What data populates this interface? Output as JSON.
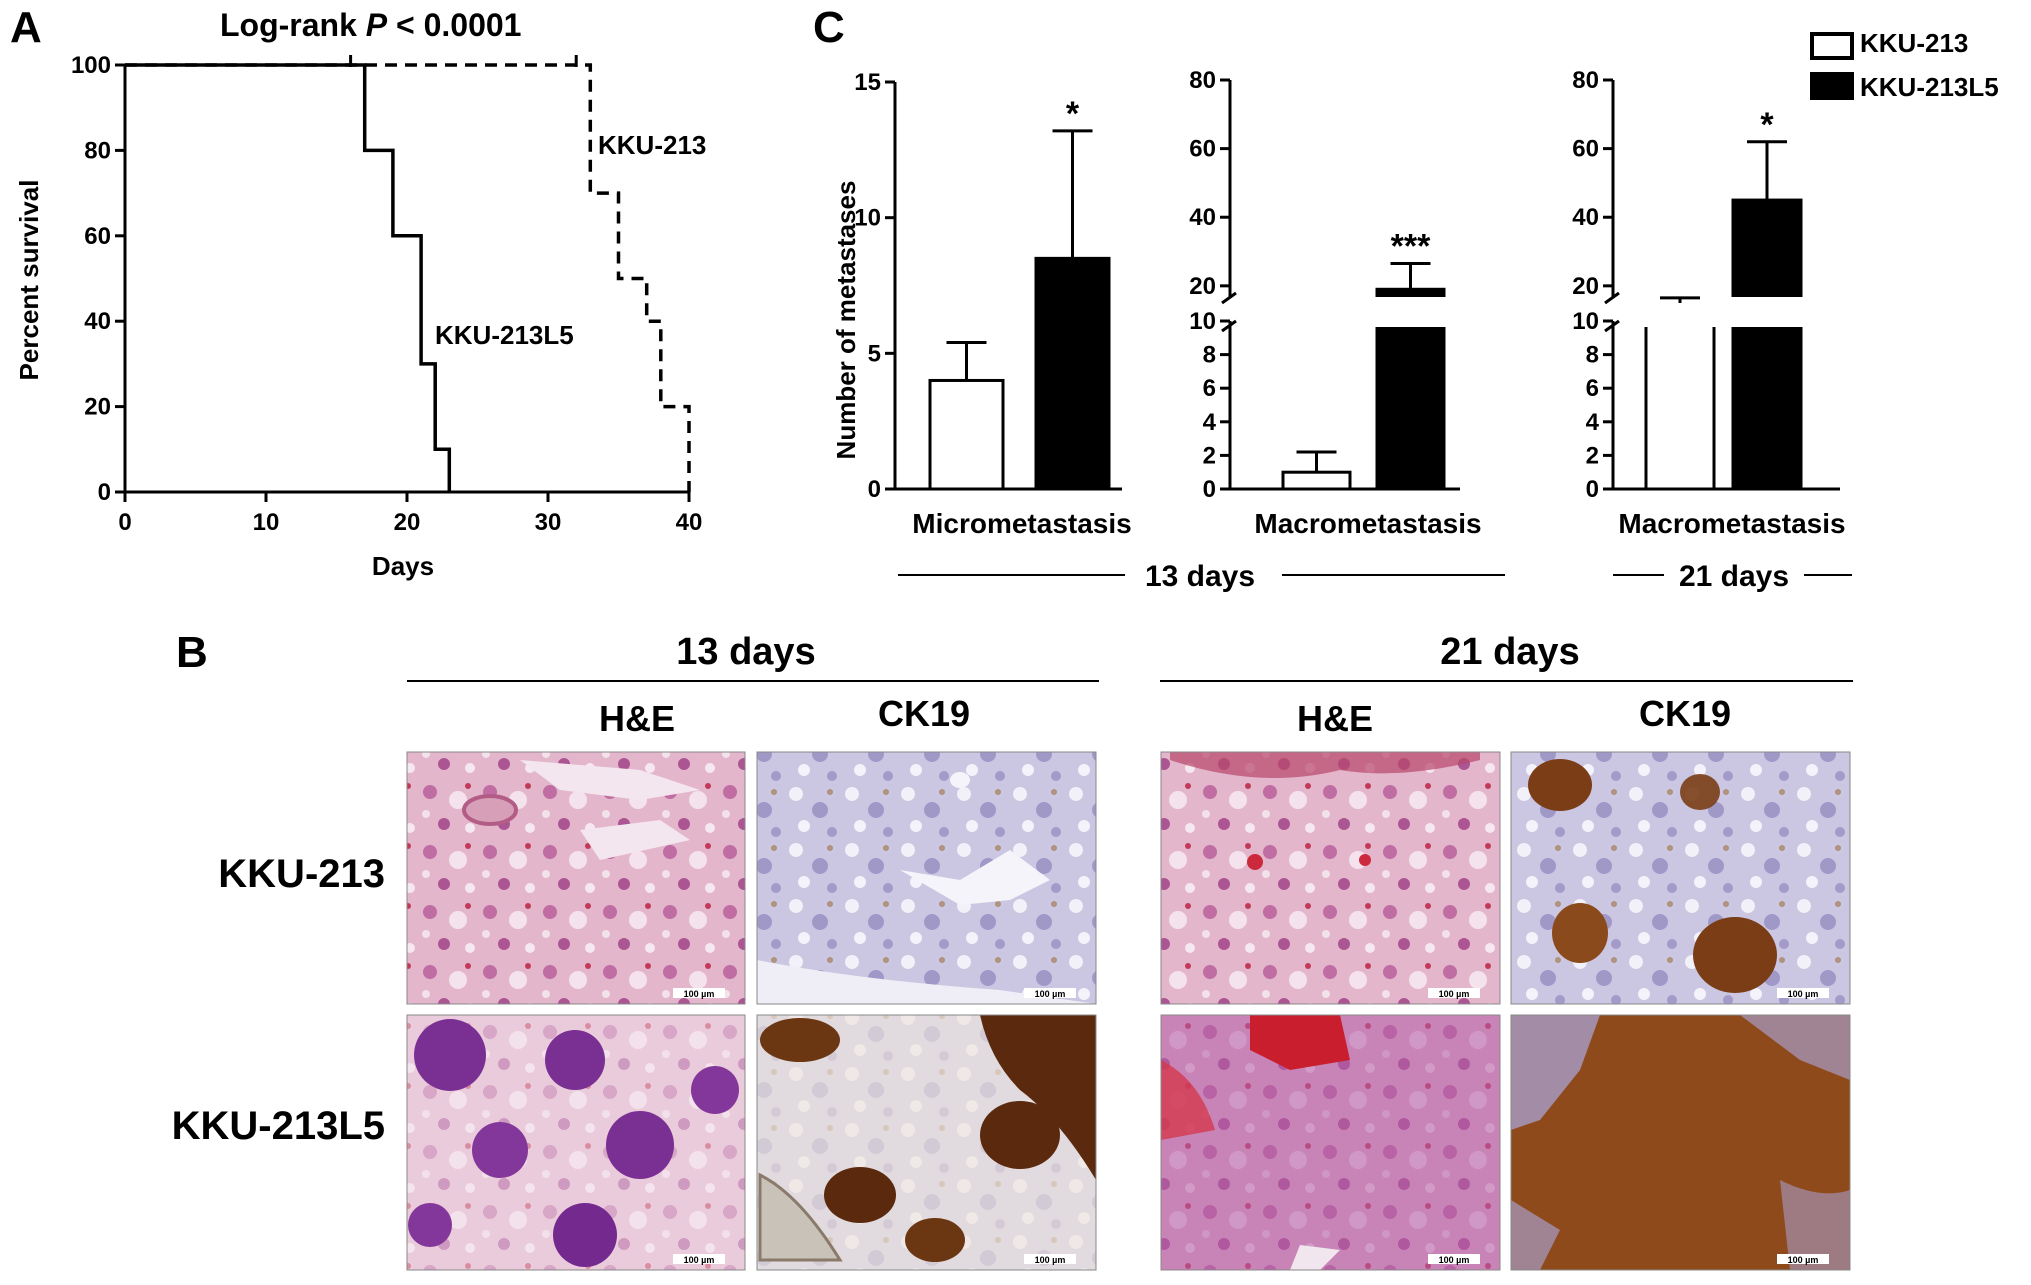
{
  "panel_labels": {
    "a": "A",
    "b": "B",
    "c": "C"
  },
  "chart_data": [
    {
      "id": "A",
      "type": "line",
      "subtype": "kaplan-meier",
      "title_prefix": "Log-rank ",
      "title_italic": "P",
      "title_suffix": " < 0.0001",
      "xlabel": "Days",
      "ylabel": "Percent survival",
      "xlim": [
        0,
        40
      ],
      "ylim": [
        0,
        100
      ],
      "xticks": [
        0,
        10,
        20,
        30,
        40
      ],
      "yticks": [
        0,
        20,
        40,
        60,
        80,
        100
      ],
      "series": [
        {
          "name": "KKU-213",
          "style": "dashed",
          "steps": [
            [
              0,
              100
            ],
            [
              32,
              100
            ],
            [
              33,
              70
            ],
            [
              35,
              50
            ],
            [
              37,
              40
            ],
            [
              38,
              20
            ],
            [
              40,
              0
            ]
          ],
          "censor_ticks": [
            16,
            32
          ]
        },
        {
          "name": "KKU-213L5",
          "style": "solid",
          "steps": [
            [
              0,
              100
            ],
            [
              17,
              100
            ],
            [
              17,
              80
            ],
            [
              19,
              60
            ],
            [
              21,
              30
            ],
            [
              22,
              10
            ],
            [
              23,
              0
            ]
          ],
          "censor_ticks": []
        }
      ]
    },
    {
      "id": "C1",
      "type": "bar",
      "ylabel": "Number of metastases",
      "xlabel": "Micrometastasis",
      "ylim": [
        0,
        15
      ],
      "yticks": [
        0,
        5,
        10,
        15
      ],
      "categories": [
        "KKU-213",
        "KKU-213L5"
      ],
      "values": [
        4.0,
        8.5
      ],
      "errors": [
        1.4,
        4.7
      ],
      "significance": [
        "",
        "*"
      ]
    },
    {
      "id": "C2",
      "type": "bar",
      "xlabel": "Macrometastasis",
      "axis_break": [
        10,
        15
      ],
      "ylim": [
        0,
        80
      ],
      "yticks": [
        0,
        2,
        4,
        6,
        8,
        10,
        20,
        40,
        60,
        80
      ],
      "categories": [
        "KKU-213",
        "KKU-213L5"
      ],
      "values": [
        1.0,
        19.0
      ],
      "errors": [
        1.2,
        7.5
      ],
      "significance": [
        "",
        "***"
      ]
    },
    {
      "id": "C3",
      "type": "bar",
      "xlabel": "Macrometastasis",
      "axis_break": [
        10,
        15
      ],
      "ylim": [
        0,
        80
      ],
      "yticks": [
        0,
        2,
        4,
        6,
        8,
        10,
        20,
        40,
        60,
        80
      ],
      "categories": [
        "KKU-213",
        "KKU-213L5"
      ],
      "values": [
        13.0,
        45.0
      ],
      "errors": [
        3.5,
        17.0
      ],
      "significance": [
        "",
        "*"
      ]
    }
  ],
  "panel_c": {
    "time_13": "13 days",
    "time_21": "21 days",
    "legend": [
      {
        "label": "KKU-213",
        "fill": "#ffffff"
      },
      {
        "label": "KKU-213L5",
        "fill": "#000000"
      }
    ]
  },
  "panel_b": {
    "header_13": "13 days",
    "header_21": "21 days",
    "stains": [
      "H&E",
      "CK19",
      "H&E",
      "CK19"
    ],
    "rows": [
      "KKU-213",
      "KKU-213L5"
    ],
    "scale_bar": "100 µm"
  },
  "colors": {
    "he_background": "#e9c4d6",
    "he_tissue": "#9c3f86",
    "he_dense": "#6f2a8c",
    "he_blood": "#cc2a3c",
    "ck19_background": "#d7d4ea",
    "ck19_tissue": "#8b83b9",
    "ck19_positive": "#6b3612"
  }
}
